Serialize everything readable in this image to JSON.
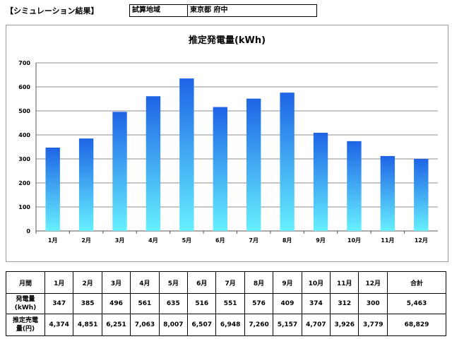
{
  "header": {
    "title": "【シミュレーション結果】",
    "area_label": "試算地域",
    "area_value": "東京都 府中"
  },
  "chart_data": {
    "type": "bar",
    "title": "推定発電量(kWh)",
    "categories": [
      "1月",
      "2月",
      "3月",
      "4月",
      "5月",
      "6月",
      "7月",
      "8月",
      "9月",
      "10月",
      "11月",
      "12月"
    ],
    "values": [
      347,
      385,
      496,
      561,
      635,
      516,
      551,
      576,
      409,
      374,
      312,
      300
    ],
    "ylim": [
      0,
      700
    ],
    "yticks": [
      0,
      100,
      200,
      300,
      400,
      500,
      600,
      700
    ],
    "grid": true,
    "colors": {
      "bar_top": "#1e64e6",
      "bar_bottom": "#66f0ff"
    }
  },
  "table": {
    "month_header": "月間",
    "months": [
      "1月",
      "2月",
      "3月",
      "4月",
      "5月",
      "6月",
      "7月",
      "8月",
      "9月",
      "10月",
      "11月",
      "12月"
    ],
    "total_header": "合計",
    "gen_label_1": "発電量",
    "gen_label_2": "(kWh)",
    "gen_values": [
      "347",
      "385",
      "496",
      "561",
      "635",
      "516",
      "551",
      "576",
      "409",
      "374",
      "312",
      "300"
    ],
    "gen_total": "5,463",
    "yen_label_1": "推定売電",
    "yen_label_2": "量(円)",
    "yen_values": [
      "4,374",
      "4,851",
      "6,251",
      "7,063",
      "8,007",
      "6,507",
      "6,948",
      "7,260",
      "5,157",
      "4,707",
      "3,926",
      "3,779"
    ],
    "yen_total": "68,829"
  }
}
